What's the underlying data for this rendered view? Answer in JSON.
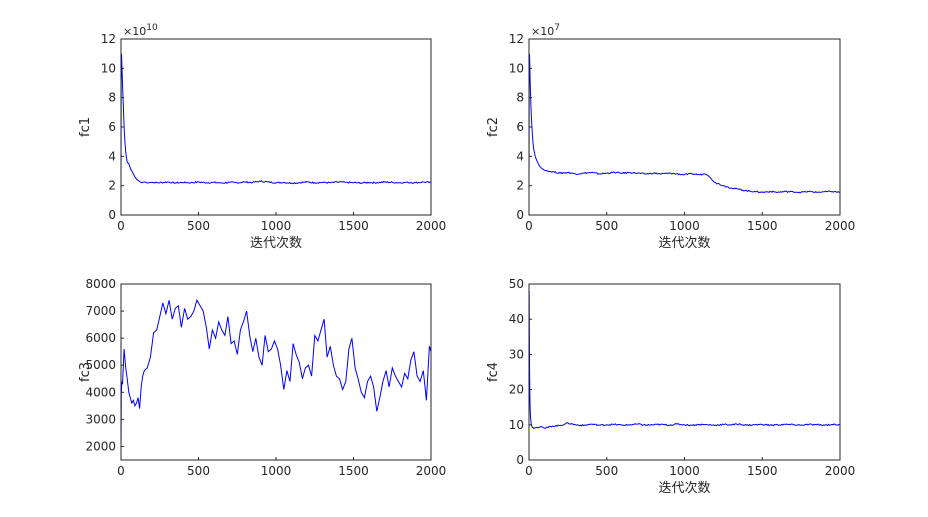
{
  "chart_data": [
    {
      "type": "line",
      "ylabel": "fc1",
      "xlabel": "迭代次数",
      "exponent": {
        "base": "×10",
        "power": "10"
      },
      "xlim": [
        0,
        2000
      ],
      "ylim": [
        0,
        12
      ],
      "xticks": [
        0,
        500,
        1000,
        1500,
        2000
      ],
      "yticks": [
        0,
        2,
        4,
        6,
        8,
        10,
        12
      ],
      "color": "#0000ff",
      "series": [
        {
          "x": [
            0,
            1,
            3,
            5,
            10,
            15,
            20,
            25,
            30,
            40,
            50,
            60,
            70,
            80,
            90,
            100,
            110,
            120,
            130,
            150,
            180,
            200,
            250,
            300,
            350,
            400,
            450,
            500,
            550,
            600,
            650,
            700,
            750,
            800,
            850,
            900,
            950,
            1000,
            1050,
            1100,
            1150,
            1200,
            1250,
            1300,
            1350,
            1400,
            1450,
            1500,
            1550,
            1600,
            1650,
            1700,
            1750,
            1800,
            1850,
            1900,
            1950,
            2000
          ],
          "y": [
            2.0,
            9.0,
            11.0,
            10.4,
            9.0,
            7.5,
            6.0,
            5.0,
            4.3,
            3.6,
            3.5,
            3.2,
            3.0,
            2.8,
            2.6,
            2.45,
            2.35,
            2.3,
            2.2,
            2.25,
            2.2,
            2.22,
            2.2,
            2.25,
            2.18,
            2.22,
            2.2,
            2.25,
            2.2,
            2.22,
            2.18,
            2.22,
            2.2,
            2.25,
            2.22,
            2.3,
            2.25,
            2.2,
            2.22,
            2.18,
            2.2,
            2.25,
            2.2,
            2.22,
            2.2,
            2.25,
            2.22,
            2.2,
            2.18,
            2.22,
            2.2,
            2.25,
            2.22,
            2.2,
            2.22,
            2.2,
            2.25,
            2.2
          ]
        }
      ]
    },
    {
      "type": "line",
      "ylabel": "fc2",
      "xlabel": "迭代次数",
      "exponent": {
        "base": "×10",
        "power": "7"
      },
      "xlim": [
        0,
        2000
      ],
      "ylim": [
        0,
        12
      ],
      "xticks": [
        0,
        500,
        1000,
        1500,
        2000
      ],
      "yticks": [
        0,
        2,
        4,
        6,
        8,
        10,
        12
      ],
      "color": "#0000ff",
      "series": [
        {
          "x": [
            0,
            1,
            3,
            5,
            8,
            12,
            15,
            20,
            25,
            30,
            40,
            50,
            60,
            70,
            80,
            100,
            120,
            150,
            200,
            250,
            300,
            350,
            400,
            450,
            500,
            550,
            600,
            650,
            700,
            750,
            800,
            850,
            900,
            950,
            1000,
            1050,
            1100,
            1130,
            1150,
            1170,
            1200,
            1250,
            1300,
            1350,
            1400,
            1450,
            1500,
            1550,
            1600,
            1650,
            1700,
            1750,
            1800,
            1850,
            1900,
            1950,
            2000
          ],
          "y": [
            1.0,
            9.0,
            11.0,
            10.2,
            9.0,
            7.5,
            6.8,
            5.8,
            5.0,
            4.5,
            4.0,
            3.7,
            3.5,
            3.3,
            3.2,
            3.05,
            3.0,
            2.95,
            2.85,
            2.9,
            2.8,
            2.85,
            2.9,
            2.8,
            2.85,
            2.9,
            2.85,
            2.9,
            2.85,
            2.8,
            2.85,
            2.8,
            2.85,
            2.8,
            2.75,
            2.8,
            2.75,
            2.8,
            2.7,
            2.5,
            2.2,
            2.0,
            1.85,
            1.75,
            1.65,
            1.6,
            1.55,
            1.6,
            1.55,
            1.6,
            1.58,
            1.55,
            1.6,
            1.55,
            1.58,
            1.6,
            1.55
          ]
        }
      ]
    },
    {
      "type": "line",
      "ylabel": "fc3",
      "xlabel": "",
      "xlim": [
        0,
        2000
      ],
      "ylim": [
        1500,
        8000
      ],
      "xticks": [
        0,
        500,
        1000,
        1500,
        2000
      ],
      "yticks": [
        2000,
        3000,
        4000,
        5000,
        6000,
        7000,
        8000
      ],
      "color": "#0000ff",
      "series": [
        {
          "x": [
            0,
            2,
            5,
            10,
            20,
            30,
            40,
            50,
            60,
            70,
            80,
            90,
            100,
            110,
            120,
            130,
            140,
            150,
            170,
            190,
            210,
            230,
            250,
            270,
            290,
            310,
            330,
            350,
            370,
            390,
            410,
            430,
            450,
            470,
            490,
            510,
            530,
            550,
            570,
            590,
            610,
            630,
            650,
            670,
            690,
            710,
            730,
            750,
            770,
            790,
            810,
            830,
            850,
            870,
            890,
            910,
            930,
            950,
            970,
            990,
            1010,
            1030,
            1050,
            1070,
            1090,
            1110,
            1130,
            1150,
            1170,
            1190,
            1210,
            1230,
            1250,
            1270,
            1290,
            1310,
            1330,
            1350,
            1370,
            1390,
            1410,
            1430,
            1450,
            1470,
            1490,
            1510,
            1530,
            1550,
            1570,
            1590,
            1610,
            1630,
            1650,
            1670,
            1690,
            1710,
            1730,
            1750,
            1770,
            1790,
            1810,
            1830,
            1850,
            1870,
            1890,
            1910,
            1930,
            1950,
            1970,
            1990,
            2000
          ],
          "y": [
            1600,
            3900,
            4400,
            4300,
            5600,
            4900,
            4500,
            4000,
            3800,
            3600,
            3700,
            3500,
            3600,
            3800,
            3400,
            4200,
            4600,
            4800,
            4900,
            5300,
            6200,
            6300,
            6800,
            7300,
            6900,
            7400,
            6700,
            7100,
            7200,
            6400,
            7100,
            6700,
            6800,
            7000,
            7400,
            7200,
            7000,
            6400,
            5600,
            6300,
            6000,
            6600,
            6300,
            6100,
            6800,
            5800,
            5900,
            5400,
            6300,
            6600,
            7000,
            6100,
            5500,
            6000,
            5300,
            5000,
            6100,
            5500,
            5600,
            5900,
            5600,
            5000,
            4100,
            4800,
            4400,
            5800,
            5400,
            5100,
            4500,
            4900,
            5000,
            4600,
            6100,
            5900,
            6300,
            6700,
            5300,
            5700,
            5000,
            4600,
            4500,
            4100,
            4400,
            5600,
            6000,
            4900,
            4500,
            4000,
            3800,
            4400,
            4600,
            4200,
            3300,
            3800,
            4400,
            4800,
            4200,
            4900,
            4600,
            4400,
            4200,
            4700,
            4500,
            5200,
            5500,
            4600,
            4400,
            4800,
            3700,
            5700,
            5500
          ]
        }
      ]
    },
    {
      "type": "line",
      "ylabel": "fc4",
      "xlabel": "迭代次数",
      "xlim": [
        0,
        2000
      ],
      "ylim": [
        0,
        50
      ],
      "xticks": [
        0,
        500,
        1000,
        1500,
        2000
      ],
      "yticks": [
        0,
        10,
        20,
        30,
        40,
        50
      ],
      "color": "#0000ff",
      "series": [
        {
          "x": [
            0,
            1,
            2,
            4,
            6,
            8,
            10,
            15,
            20,
            30,
            50,
            80,
            100,
            150,
            200,
            250,
            300,
            350,
            400,
            450,
            500,
            550,
            600,
            650,
            700,
            750,
            800,
            850,
            900,
            950,
            1000,
            1050,
            1100,
            1150,
            1200,
            1250,
            1300,
            1350,
            1400,
            1450,
            1500,
            1550,
            1600,
            1650,
            1700,
            1750,
            1800,
            1850,
            1900,
            1950,
            2000
          ],
          "y": [
            10,
            48,
            40,
            25,
            18,
            14,
            12,
            10,
            9.4,
            9.0,
            9.3,
            9.5,
            9.0,
            9.6,
            9.8,
            10.5,
            10.0,
            9.8,
            10.2,
            9.9,
            10.0,
            10.1,
            9.9,
            10.0,
            10.2,
            9.9,
            10.0,
            10.1,
            9.9,
            10.2,
            10.0,
            9.9,
            10.1,
            10.0,
            9.9,
            10.1,
            10.0,
            10.2,
            9.9,
            10.0,
            10.1,
            9.9,
            10.0,
            10.1,
            10.0,
            9.9,
            10.1,
            10.0,
            9.9,
            10.1,
            10.0
          ]
        }
      ]
    }
  ]
}
